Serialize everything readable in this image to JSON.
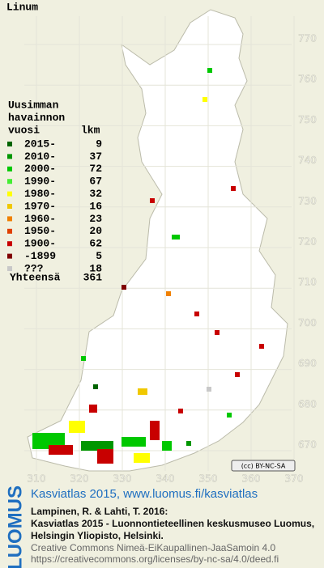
{
  "map": {
    "title": "Linum",
    "y_labels": [
      "770",
      "760",
      "750",
      "740",
      "730",
      "720",
      "710",
      "700",
      "690",
      "680",
      "670"
    ],
    "x_labels": [
      "310",
      "320",
      "330",
      "340",
      "350",
      "360",
      "370"
    ],
    "license_badge": "(cc) BY-NC-SA"
  },
  "legend": {
    "heading": [
      "Uusimman",
      "havainnon",
      "vuosi"
    ],
    "count_heading": "lkm",
    "rows": [
      {
        "label": "2015-",
        "count": 9,
        "color": "#006400"
      },
      {
        "label": "2010-",
        "count": 37,
        "color": "#009600"
      },
      {
        "label": "2000-",
        "count": 72,
        "color": "#00c800"
      },
      {
        "label": "1990-",
        "count": 67,
        "color": "#44ee33"
      },
      {
        "label": "1980-",
        "count": 32,
        "color": "#ffff00"
      },
      {
        "label": "1970-",
        "count": 16,
        "color": "#f0c800"
      },
      {
        "label": "1960-",
        "count": 23,
        "color": "#f08000"
      },
      {
        "label": "1950-",
        "count": 20,
        "color": "#e04000"
      },
      {
        "label": "1900-",
        "count": 62,
        "color": "#c80000"
      },
      {
        "label": "-1899",
        "count": 5,
        "color": "#800000"
      },
      {
        "label": "???",
        "count": 18,
        "color": "#c8c8c8"
      }
    ],
    "total_label": "Yhteensä",
    "total": 361
  },
  "footer": {
    "logo": "LUOMUS",
    "headline": "Kasviatlas 2015, www.luomus.fi/kasviatlas",
    "citation": [
      "Lampinen, R. & Lahti, T. 2016:",
      "Kasviatlas 2015 - Luonnontieteellinen keskusmuseo Luomus,",
      "Helsingin Yliopisto, Helsinki."
    ],
    "license": [
      "Creative Commons Nimeä-EiKaupallinen-JaaSamoin 4.0",
      "https://creativecommons.org/licenses/by-nc-sa/4.0/deed.fi"
    ]
  }
}
